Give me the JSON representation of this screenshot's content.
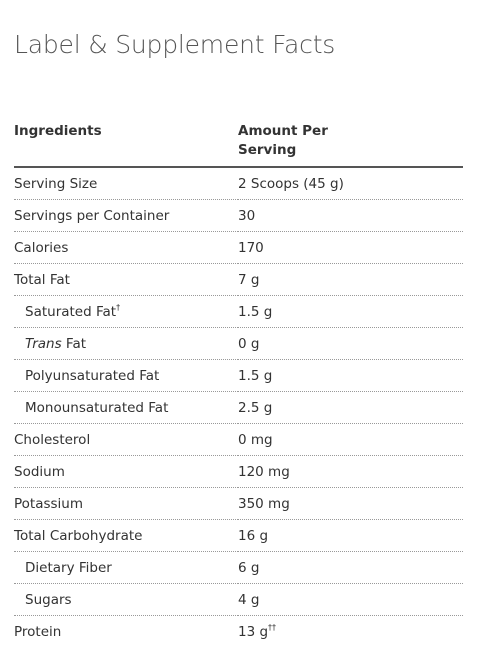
{
  "page": {
    "title": "Label & Supplement Facts"
  },
  "table": {
    "headers": {
      "ingredients": "Ingredients",
      "amount_line1": "Amount Per",
      "amount_line2": "Serving"
    },
    "rows": [
      {
        "name": "Serving Size",
        "amount": "2 Scoops (45 g)"
      },
      {
        "name": "Servings per Container",
        "amount": "30"
      },
      {
        "name": "Calories",
        "amount": "170"
      },
      {
        "name": "Total Fat",
        "amount": "7 g"
      },
      {
        "name": "Saturated Fat",
        "name_sup": "†",
        "amount": "1.5 g"
      },
      {
        "name_italic": "Trans",
        "name": " Fat",
        "amount": "0 g"
      },
      {
        "name": "Polyunsaturated Fat",
        "amount": "1.5 g"
      },
      {
        "name": "Monounsaturated Fat",
        "amount": "2.5 g"
      },
      {
        "name": "Cholesterol",
        "amount": "0 mg"
      },
      {
        "name": "Sodium",
        "amount": "120 mg"
      },
      {
        "name": "Potassium",
        "amount": "350 mg"
      },
      {
        "name": "Total Carbohydrate",
        "amount": "16 g"
      },
      {
        "name": "Dietary Fiber",
        "amount": "6 g"
      },
      {
        "name": "Sugars",
        "amount": "4 g"
      },
      {
        "name": "Protein",
        "amount": "13 g",
        "amount_sup": "††"
      }
    ]
  }
}
